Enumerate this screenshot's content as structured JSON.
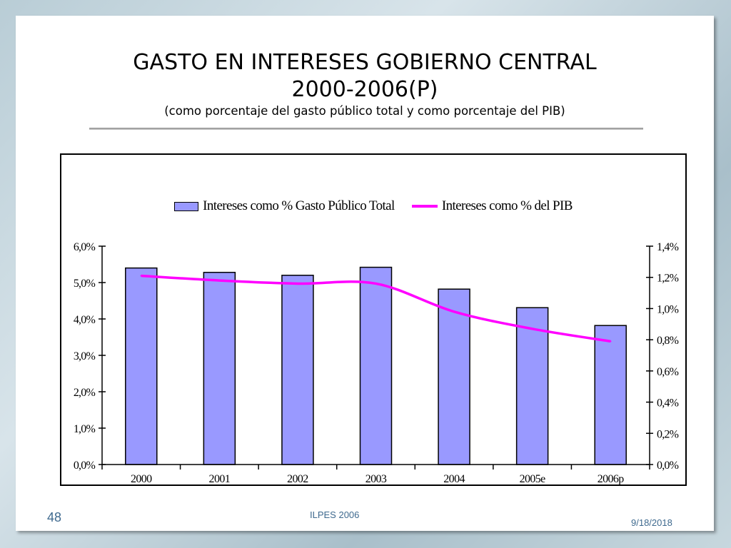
{
  "slide": {
    "title_line1": "GASTO EN INTERESES GOBIERNO CENTRAL",
    "title_line2": "2000-2006(P)",
    "subtitle": "(como porcentaje del gasto público total y como porcentaje del PIB)",
    "slide_number": "48",
    "footer_center": "ILPES 2006",
    "footer_date": "9/18/2018"
  },
  "colors": {
    "bar_fill": "#9999ff",
    "line": "#ff00ff"
  },
  "chart_data": {
    "type": "bar",
    "title": "",
    "categories": [
      "2000",
      "2001",
      "2002",
      "2003",
      "2004",
      "2005e",
      "2006p"
    ],
    "series": [
      {
        "name": "Intereses como % Gasto Público Total",
        "type": "bar",
        "axis": "left",
        "values": [
          5.4,
          5.28,
          5.2,
          5.42,
          4.82,
          4.31,
          3.82
        ]
      },
      {
        "name": "Intereses como % del PIB",
        "type": "line",
        "axis": "right",
        "values": [
          1.21,
          1.18,
          1.16,
          1.16,
          0.98,
          0.87,
          0.79
        ]
      }
    ],
    "y_left": {
      "ticks": [
        0,
        1,
        2,
        3,
        4,
        5,
        6
      ],
      "tick_labels": [
        "0,0%",
        "1,0%",
        "2,0%",
        "3,0%",
        "4,0%",
        "5,0%",
        "6,0%"
      ],
      "ylim": [
        0,
        6
      ]
    },
    "y_right": {
      "ticks": [
        0,
        0.2,
        0.4,
        0.6,
        0.8,
        1.0,
        1.2,
        1.4
      ],
      "tick_labels": [
        "0,0%",
        "0,2%",
        "0,4%",
        "0,6%",
        "0,8%",
        "1,0%",
        "1,2%",
        "1,4%"
      ],
      "ylim": [
        0,
        1.4
      ]
    },
    "grid": false,
    "legend": "top-center"
  }
}
